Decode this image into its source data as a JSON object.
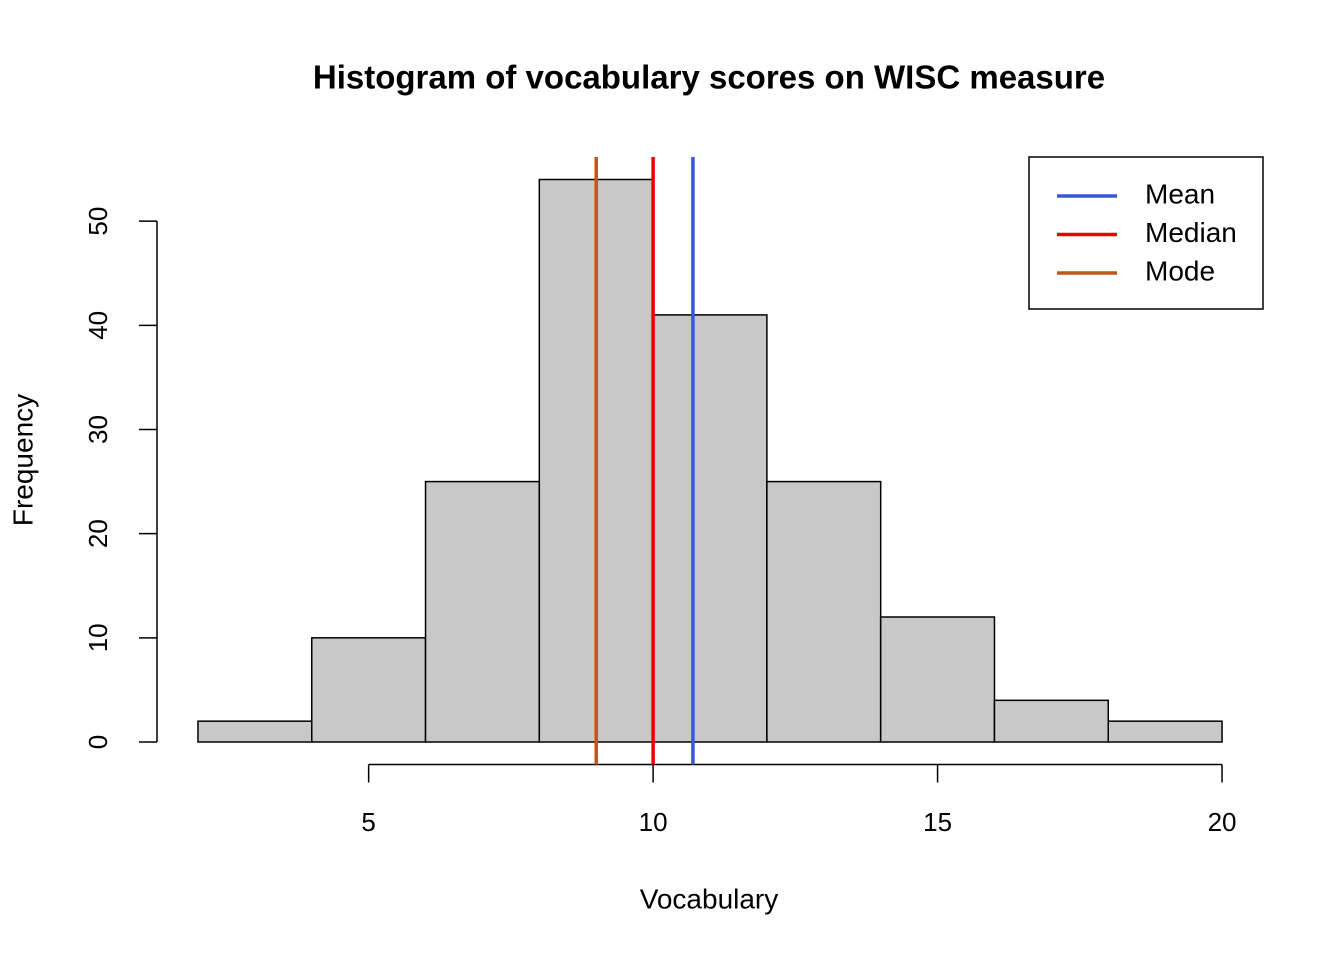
{
  "chart_data": {
    "type": "histogram",
    "title": "Histogram of vocabulary scores on WISC measure",
    "x_label": "Vocabulary",
    "y_label": "Frequency",
    "bins": [
      2,
      4,
      6,
      8,
      10,
      12,
      14,
      16,
      18,
      20
    ],
    "values": [
      2,
      10,
      25,
      54,
      41,
      25,
      12,
      4,
      2
    ],
    "color": "#c8c8c8",
    "xlim": [
      1.28,
      20.72
    ],
    "ylim": [
      -2.16,
      56.16
    ],
    "xticks": [
      5,
      10,
      15,
      20
    ],
    "yticks": [
      0,
      10,
      20,
      30,
      40,
      50
    ],
    "reference_lines": [
      {
        "name": "Mean",
        "color": "#3a57d4",
        "value": 10.7
      },
      {
        "name": "Median",
        "color": "#ee0000",
        "value": 10
      },
      {
        "name": "Mode",
        "color": "#c0561c",
        "value": 9
      }
    ],
    "legend": "topright"
  }
}
